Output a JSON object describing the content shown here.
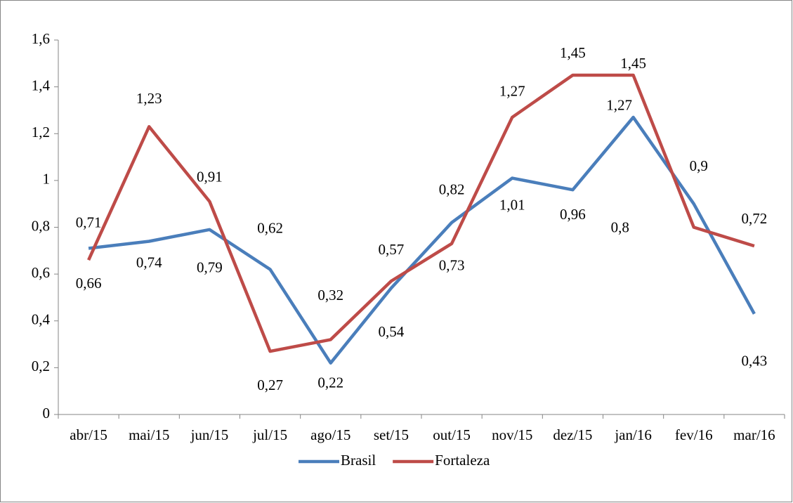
{
  "chart_data": {
    "type": "line",
    "categories": [
      "abr/15",
      "mai/15",
      "jun/15",
      "jul/15",
      "ago/15",
      "set/15",
      "out/15",
      "nov/15",
      "dez/15",
      "jan/16",
      "fev/16",
      "mar/16"
    ],
    "series": [
      {
        "name": "Brasil",
        "color": "#4a7ebb",
        "values": [
          0.71,
          0.74,
          0.79,
          0.62,
          0.22,
          0.54,
          0.82,
          1.01,
          0.96,
          1.27,
          0.9,
          0.43
        ],
        "value_labels": [
          "0,71",
          "0,74",
          "0,79",
          "0,62",
          "0,22",
          "0,54",
          "0,82",
          "1,01",
          "0,96",
          "1,27",
          "0,9",
          "0,43"
        ]
      },
      {
        "name": "Fortaleza",
        "color": "#be4b48",
        "values": [
          0.66,
          1.23,
          0.91,
          0.27,
          0.32,
          0.57,
          0.73,
          1.27,
          1.45,
          1.45,
          0.8,
          0.72
        ],
        "value_labels": [
          "0,66",
          "1,23",
          "0,91",
          "0,27",
          "0,32",
          "0,57",
          "0,73",
          "1,27",
          "1,45",
          "1,45",
          "0,8",
          "0,72"
        ]
      }
    ],
    "ylim": [
      0,
      1.6
    ],
    "yticks": [
      0,
      {
        "value": 0.2,
        "label": "0,2"
      },
      {
        "value": 0.4,
        "label": "0,4"
      },
      {
        "value": 0.6,
        "label": "0,6"
      },
      {
        "value": 0.8,
        "label": "0,8"
      },
      1,
      {
        "value": 1.2,
        "label": "1,2"
      },
      {
        "value": 1.4,
        "label": "1,4"
      },
      {
        "value": 1.6,
        "label": "1,6"
      }
    ],
    "grid": false,
    "legend": "bottom"
  }
}
